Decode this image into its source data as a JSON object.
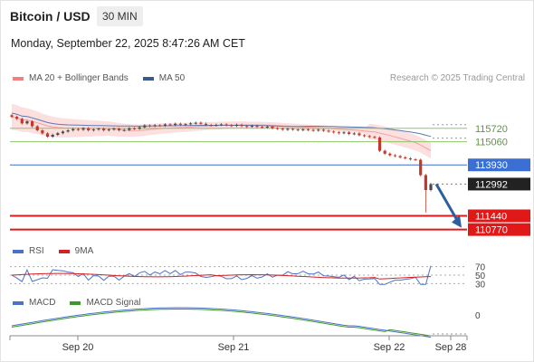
{
  "header": {
    "title": "Bitcoin / USD",
    "timeframe": "30 MIN",
    "timestamp": "Monday, September 22, 2025 8:47:26 AM CET"
  },
  "legend_main": [
    {
      "label": "MA 20 + Bollinger Bands",
      "color": "#f08080"
    },
    {
      "label": "MA 50",
      "color": "#3a5a8c"
    }
  ],
  "credit": "Research © 2025 Trading Central",
  "legend_rsi": [
    {
      "label": "RSI",
      "color": "#4a72c8"
    },
    {
      "label": "9MA",
      "color": "#d42020"
    }
  ],
  "legend_macd": [
    {
      "label": "MACD",
      "color": "#4a72c8"
    },
    {
      "label": "MACD Signal",
      "color": "#3a9a2a"
    }
  ],
  "colors": {
    "candle_up": "#4a4a4a",
    "candle_down": "#c0392b",
    "band_fill": "#fbdada",
    "ma20": "#f3a0a0",
    "ma50": "#5a7ab0",
    "green_level": "#8fc46a",
    "pivot_blue": "#3b6fd4",
    "support_red": "#e01818",
    "current_dark": "#222222",
    "arrow": "#2c5f9e"
  },
  "chart_data": {
    "type": "candlestick",
    "x_ticks": [
      "Sep 20",
      "Sep 21",
      "Sep 22",
      "Sep 28"
    ],
    "price_ylim": [
      110400,
      117700
    ],
    "levels": [
      {
        "value": 115720,
        "label": "115720",
        "kind": "resistance"
      },
      {
        "value": 115060,
        "label": "115060",
        "kind": "resistance"
      },
      {
        "value": 113930,
        "label": "113930",
        "kind": "pivot"
      },
      {
        "value": 112992,
        "label": "112992",
        "kind": "last"
      },
      {
        "value": 111440,
        "label": "111440",
        "kind": "support"
      },
      {
        "value": 110770,
        "label": "110770",
        "kind": "support"
      }
    ],
    "close_series": [
      116280,
      116180,
      115960,
      116060,
      115820,
      115620,
      115470,
      115310,
      115400,
      115480,
      115560,
      115620,
      115680,
      115650,
      115720,
      115620,
      115660,
      115700,
      115620,
      115660,
      115700,
      115620,
      115640,
      115720,
      115700,
      115770,
      115860,
      115830,
      115870,
      115850,
      115910,
      115880,
      115940,
      115890,
      115920,
      115960,
      115990,
      115940,
      115880,
      115860,
      115890,
      115910,
      115870,
      115840,
      115890,
      115830,
      115800,
      115840,
      115790,
      115760,
      115800,
      115730,
      115700,
      115650,
      115690,
      115660,
      115630,
      115670,
      115640,
      115610,
      115650,
      115600,
      115560,
      115520,
      115480,
      115520,
      115440,
      115470,
      115380,
      115340,
      115300,
      115270,
      114620,
      114480,
      114400,
      114360,
      114300,
      114250,
      114200,
      114180,
      113430,
      112700,
      112992
    ],
    "bollinger_upper_start": 116900,
    "bollinger_lower_start": 115700,
    "projection": {
      "from": 112992,
      "to": 110770
    },
    "rsi": {
      "levels": [
        70,
        50,
        30
      ],
      "ylim": [
        20,
        80
      ]
    },
    "macd": {
      "levels": [
        0
      ]
    }
  }
}
